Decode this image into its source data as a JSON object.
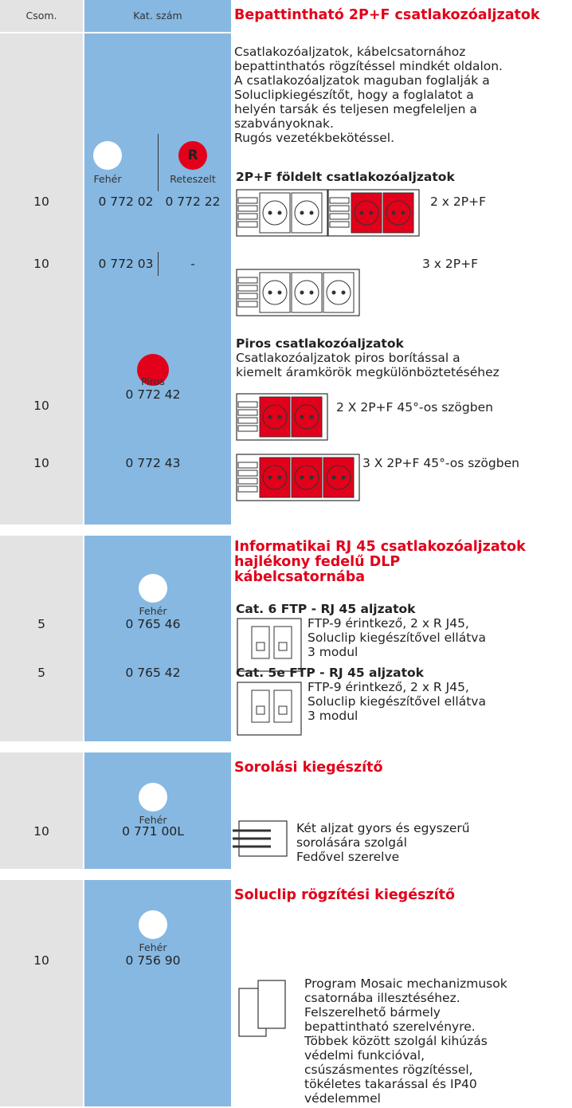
{
  "header": {
    "pack": "Csom.",
    "code": "Kat. szám"
  },
  "sections": [
    {
      "title": "Bepattintható 2P+F csatlakozóaljzatok",
      "intro": [
        "Csatlakozóaljzatok, kábelcsatornához",
        "bepattinthatós rögzítéssel mindkét oldalon.",
        "A csatlakozóaljzatok maguban foglalják a",
        "Soluclipkiegészítőt, hogy a foglalatot a",
        "helyén tarsák és teljesen megfeleljen a",
        "szabványoknak.",
        "Rugós vezetékbekötéssel."
      ],
      "variants": [
        "Fehér",
        "Reteszelt"
      ],
      "badge": "R",
      "groups": [
        {
          "heading": "2P+F földelt csatlakozóaljzatok",
          "rows": [
            {
              "pack": "10",
              "codes": [
                "0 772 02",
                "0 772 22"
              ],
              "label": "2 x 2P+F"
            },
            {
              "pack": "10",
              "codes": [
                "0 772 03",
                "-"
              ],
              "label": "3 x 2P+F"
            }
          ]
        },
        {
          "heading": "Piros csatlakozóaljzatok",
          "text": [
            "Csatlakozóaljzatok piros borítással a",
            "kiemelt áramkörök megkülönböztetéséhez"
          ],
          "variant": "Piros",
          "rows": [
            {
              "pack": "10",
              "code": "0 772 42",
              "label": "2 X 2P+F 45°-os szögben"
            },
            {
              "pack": "10",
              "code": "0 772 43",
              "label": "3 X 2P+F 45°-os szögben"
            }
          ]
        }
      ]
    },
    {
      "title": [
        "Informatikai RJ 45 csatlakozóaljzatok",
        "hajlékony fedelű DLP",
        "kábelcsatornába"
      ],
      "variant": "Fehér",
      "items": [
        {
          "heading": "Cat. 6 FTP - RJ 45 aljzatok",
          "pack": "5",
          "code": "0 765 46",
          "lines": [
            "FTP-9 érintkező, 2 x R J45,",
            "Soluclip kiegészítővel ellátva",
            "3 modul"
          ]
        },
        {
          "heading": "Cat. 5e FTP - RJ 45 aljzatok",
          "pack": "5",
          "code": "0 765 42",
          "lines": [
            "FTP-9 érintkező, 2 x R J45,",
            "Soluclip kiegészítővel ellátva",
            "3 modul"
          ]
        }
      ]
    },
    {
      "title": "Sorolási kiegészítő",
      "variant": "Fehér",
      "pack": "10",
      "code": "0 771 00L",
      "lines": [
        "Két aljzat gyors és egyszerű",
        "sorolására szolgál",
        "Fedővel szerelve"
      ]
    },
    {
      "title": "Soluclip rögzítési kiegészítő",
      "variant": "Fehér",
      "pack": "10",
      "code": "0 756 90",
      "lines": [
        "Program Mosaic mechanizmusok",
        "csatornába illesztéséhez.",
        "Felszerelhető bármely",
        "bepattintható szerelvényre.",
        "Többek között szolgál kihúzás",
        "védelmi funkcióval,",
        "csúszásmentes rögzítéssel,",
        "tökéletes takarással és IP40",
        "védelemmel"
      ]
    }
  ]
}
